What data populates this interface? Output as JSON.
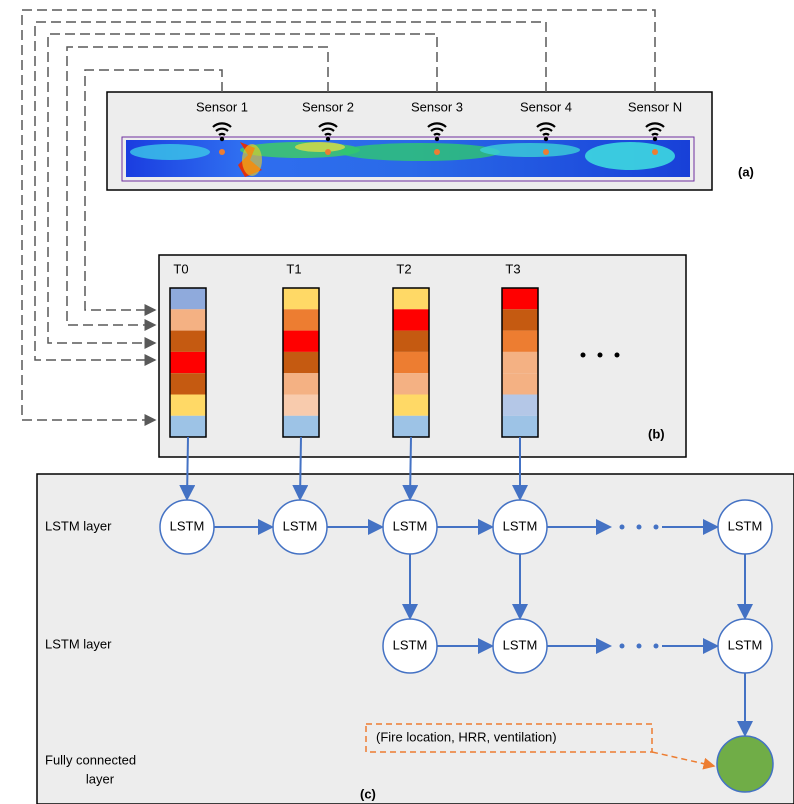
{
  "panel_a": {
    "sensors": [
      "Sensor 1",
      "Sensor 2",
      "Sensor 3",
      "Sensor 4",
      "Sensor N"
    ],
    "label": "(a)"
  },
  "panel_b": {
    "time_steps": [
      "T0",
      "T1",
      "T2",
      "T3"
    ],
    "label": "(b)"
  },
  "panel_c": {
    "layer_1": {
      "label": "LSTM layer",
      "nodes": [
        "LSTM",
        "LSTM",
        "LSTM",
        "LSTM",
        "LSTM"
      ]
    },
    "layer_2": {
      "label": "LSTM layer",
      "nodes": [
        "LSTM",
        "LSTM",
        "LSTM"
      ]
    },
    "output": {
      "label_lines": [
        "Fully connected",
        "layer"
      ],
      "note": "(Fire location, HRR, ventilation)"
    },
    "label": "(c)"
  }
}
